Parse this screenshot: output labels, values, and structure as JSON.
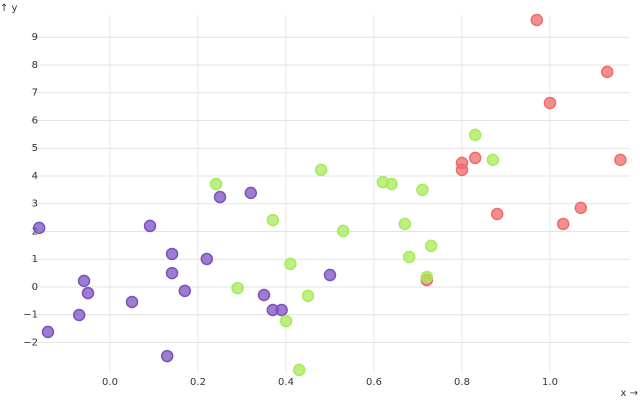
{
  "chart_data": {
    "type": "scatter",
    "x_label": "x →",
    "y_label": "↑ y",
    "xlim": [
      -0.18,
      1.18
    ],
    "ylim": [
      -3.1,
      9.8
    ],
    "xticks": [
      {
        "value": 0,
        "label": "0.0"
      },
      0.2,
      0.4,
      0.6,
      0.8,
      {
        "value": 1,
        "label": "1.0"
      }
    ],
    "yticks": [
      {
        "value": -2,
        "label": "−2"
      },
      {
        "value": -1,
        "label": "−1"
      },
      0,
      1,
      2,
      3,
      4,
      5,
      6,
      7,
      8,
      9
    ],
    "grid": true,
    "series": [
      {
        "color": "#7b52c0",
        "x": [
          -0.161,
          -0.141,
          -0.059,
          -0.05,
          -0.07,
          0.05,
          0.091,
          0.141,
          0.141,
          0.17,
          0.13,
          0.22,
          0.25,
          0.32,
          0.35,
          0.37,
          0.39,
          0.5
        ],
        "y": [
          2.13,
          -1.62,
          0.22,
          -0.22,
          -1.01,
          -0.54,
          2.2,
          1.19,
          0.5,
          -0.14,
          -2.49,
          1.01,
          3.24,
          3.39,
          -0.29,
          -0.83,
          -0.83,
          0.43
        ]
      },
      {
        "color": "#f06a6a",
        "x": [
          0.72,
          0.8,
          0.8,
          0.83,
          0.88,
          0.97,
          1.0,
          1.03,
          1.07,
          1.13,
          1.16
        ],
        "y": [
          0.25,
          4.47,
          4.22,
          4.65,
          2.63,
          9.62,
          6.63,
          2.27,
          2.85,
          7.75,
          4.58
        ]
      },
      {
        "color": "#a8ea5a",
        "x": [
          0.241,
          0.29,
          0.37,
          0.4,
          0.41,
          0.43,
          0.45,
          0.48,
          0.53,
          0.62,
          0.64,
          0.67,
          0.68,
          0.71,
          0.72,
          0.73,
          0.83,
          0.87
        ],
        "y": [
          3.71,
          -0.04,
          2.41,
          -1.23,
          0.83,
          -2.99,
          -0.32,
          4.22,
          2.02,
          3.78,
          3.71,
          2.27,
          1.08,
          3.5,
          0.36,
          1.48,
          5.48,
          4.58
        ]
      }
    ]
  }
}
